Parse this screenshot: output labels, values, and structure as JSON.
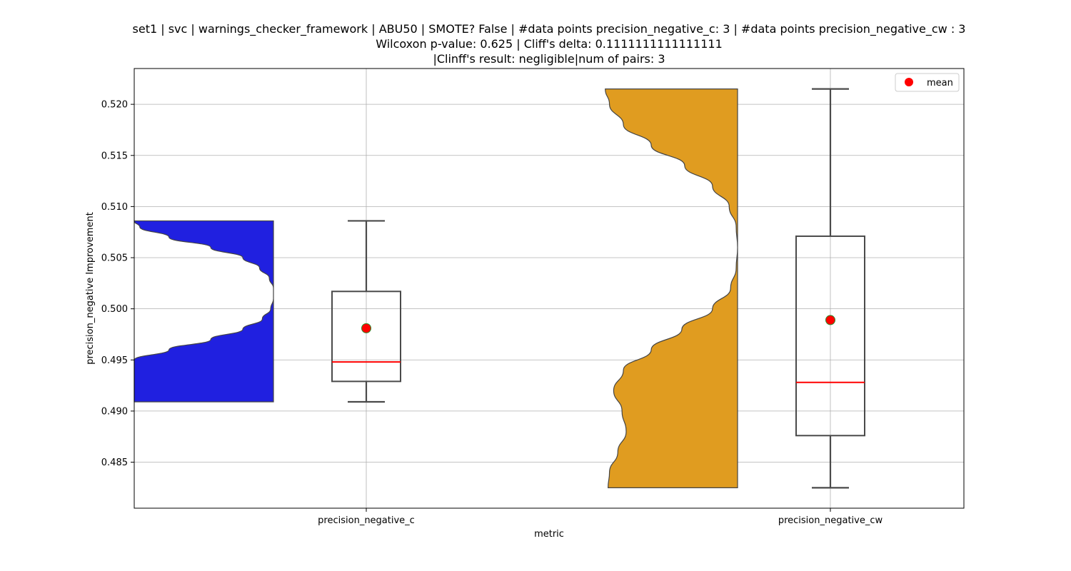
{
  "chart_data": {
    "type": "violin+box",
    "title_lines": [
      "set1 | svc | warnings_checker_framework | ABU50 | SMOTE? False | #data points precision_negative_c: 3 | #data points precision_negative_cw : 3",
      "Wilcoxon p-value: 0.625 | Cliff's delta: 0.1111111111111111",
      "|Clinff's result: negligible|num of pairs: 3"
    ],
    "xlabel": "metric",
    "ylabel": "precision_negative Improvement",
    "categories": [
      "precision_negative_c",
      "precision_negative_cw"
    ],
    "ylim": [
      0.4805,
      0.5235
    ],
    "yticks": [
      0.485,
      0.49,
      0.495,
      0.5,
      0.505,
      0.51,
      0.515,
      0.52
    ],
    "ytick_labels": [
      "0.485",
      "0.490",
      "0.495",
      "0.500",
      "0.505",
      "0.510",
      "0.515",
      "0.520"
    ],
    "grid": true,
    "legend": {
      "placement": "top-right",
      "entries": [
        {
          "label": "mean",
          "color": "#ff0000",
          "marker": "circle"
        }
      ]
    },
    "series": [
      {
        "category": "precision_negative_c",
        "violin_color": "#2020e0",
        "violin_range": [
          0.4909,
          0.5086
        ],
        "violin_density": [
          [
            0.4909,
            1.0
          ],
          [
            0.495,
            1.0
          ],
          [
            0.496,
            0.75
          ],
          [
            0.497,
            0.45
          ],
          [
            0.498,
            0.22
          ],
          [
            0.499,
            0.08
          ],
          [
            0.5,
            0.02
          ],
          [
            0.501,
            0.0
          ],
          [
            0.502,
            0.0
          ],
          [
            0.503,
            0.03
          ],
          [
            0.504,
            0.1
          ],
          [
            0.505,
            0.22
          ],
          [
            0.506,
            0.45
          ],
          [
            0.507,
            0.75
          ],
          [
            0.508,
            0.96
          ],
          [
            0.5086,
            1.0
          ]
        ],
        "box": {
          "min": 0.4909,
          "q1": 0.4929,
          "median": 0.4948,
          "q3": 0.5017,
          "max": 0.5086
        },
        "mean": 0.4981
      },
      {
        "category": "precision_negative_cw",
        "violin_color": "#e09c20",
        "violin_range": [
          0.4825,
          0.5215
        ],
        "violin_density": [
          [
            0.4825,
            0.93
          ],
          [
            0.484,
            0.92
          ],
          [
            0.486,
            0.86
          ],
          [
            0.488,
            0.8
          ],
          [
            0.49,
            0.83
          ],
          [
            0.492,
            0.89
          ],
          [
            0.494,
            0.82
          ],
          [
            0.496,
            0.62
          ],
          [
            0.498,
            0.4
          ],
          [
            0.5,
            0.18
          ],
          [
            0.502,
            0.05
          ],
          [
            0.504,
            0.01
          ],
          [
            0.506,
            0.0
          ],
          [
            0.508,
            0.01
          ],
          [
            0.51,
            0.06
          ],
          [
            0.512,
            0.18
          ],
          [
            0.514,
            0.38
          ],
          [
            0.516,
            0.62
          ],
          [
            0.518,
            0.82
          ],
          [
            0.52,
            0.92
          ],
          [
            0.5215,
            0.95
          ]
        ],
        "box": {
          "min": 0.4825,
          "q1": 0.4876,
          "median": 0.4928,
          "q3": 0.5071,
          "max": 0.5215
        },
        "mean": 0.4989
      }
    ],
    "colors": {
      "median": "#ff0000",
      "mean_fill": "#ff0000",
      "mean_edge": "#2e8b2e",
      "box_edge": "#4a4a4a",
      "grid": "#b0b0b0"
    }
  }
}
